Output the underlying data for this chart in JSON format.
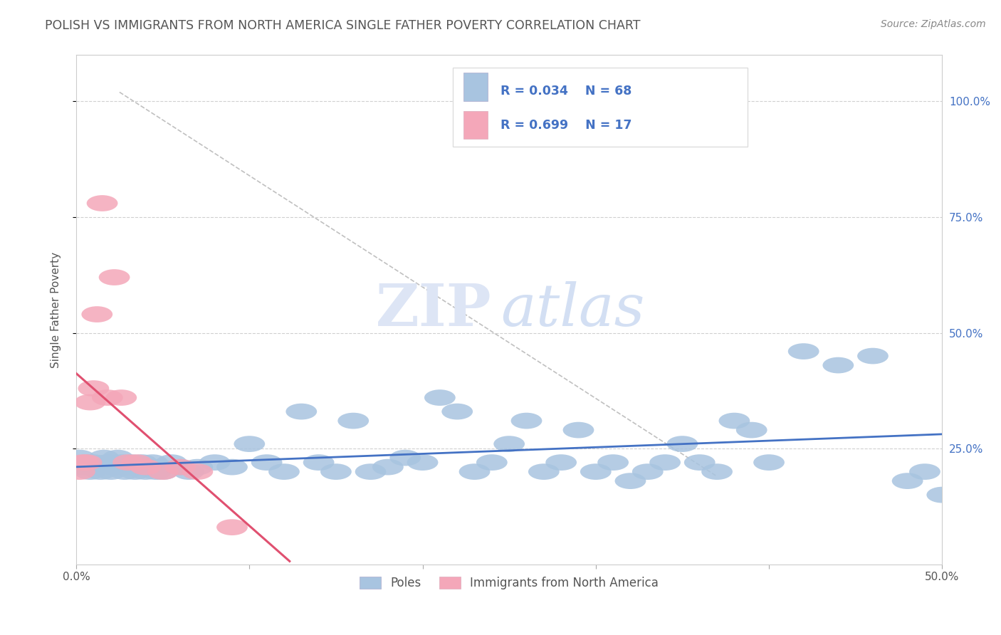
{
  "title": "POLISH VS IMMIGRANTS FROM NORTH AMERICA SINGLE FATHER POVERTY CORRELATION CHART",
  "source": "Source: ZipAtlas.com",
  "ylabel": "Single Father Poverty",
  "xlim": [
    0.0,
    0.5
  ],
  "ylim": [
    0.0,
    1.1
  ],
  "xticks": [
    0.0,
    0.1,
    0.2,
    0.3,
    0.4,
    0.5
  ],
  "xticklabels": [
    "0.0%",
    "",
    "",
    "",
    "",
    "50.0%"
  ],
  "yticks_right": [
    0.25,
    0.5,
    0.75,
    1.0
  ],
  "yticklabels_right": [
    "25.0%",
    "50.0%",
    "75.0%",
    "100.0%"
  ],
  "R_blue": "R = 0.034",
  "N_blue": "N = 68",
  "R_pink": "R = 0.699",
  "N_pink": "N = 17",
  "color_blue": "#a8c4e0",
  "color_pink": "#f4a7b9",
  "line_blue": "#4472c4",
  "line_pink": "#e05070",
  "poles_x": [
    0.002,
    0.004,
    0.006,
    0.008,
    0.01,
    0.012,
    0.014,
    0.016,
    0.018,
    0.02,
    0.022,
    0.024,
    0.026,
    0.028,
    0.03,
    0.032,
    0.034,
    0.036,
    0.038,
    0.04,
    0.042,
    0.044,
    0.046,
    0.048,
    0.05,
    0.055,
    0.06,
    0.065,
    0.07,
    0.08,
    0.09,
    0.1,
    0.11,
    0.12,
    0.13,
    0.14,
    0.15,
    0.16,
    0.17,
    0.18,
    0.19,
    0.2,
    0.21,
    0.22,
    0.23,
    0.24,
    0.25,
    0.26,
    0.27,
    0.28,
    0.29,
    0.3,
    0.31,
    0.32,
    0.33,
    0.34,
    0.35,
    0.36,
    0.37,
    0.38,
    0.39,
    0.4,
    0.42,
    0.44,
    0.46,
    0.48,
    0.49,
    0.5
  ],
  "poles_y": [
    0.23,
    0.21,
    0.22,
    0.2,
    0.22,
    0.21,
    0.2,
    0.23,
    0.22,
    0.2,
    0.21,
    0.23,
    0.22,
    0.2,
    0.21,
    0.22,
    0.2,
    0.21,
    0.22,
    0.2,
    0.21,
    0.22,
    0.2,
    0.21,
    0.2,
    0.22,
    0.21,
    0.2,
    0.21,
    0.22,
    0.21,
    0.26,
    0.22,
    0.2,
    0.33,
    0.22,
    0.2,
    0.31,
    0.2,
    0.21,
    0.23,
    0.22,
    0.36,
    0.33,
    0.2,
    0.22,
    0.26,
    0.31,
    0.2,
    0.22,
    0.29,
    0.2,
    0.22,
    0.18,
    0.2,
    0.22,
    0.26,
    0.22,
    0.2,
    0.31,
    0.29,
    0.22,
    0.46,
    0.43,
    0.45,
    0.18,
    0.2,
    0.15
  ],
  "immigrants_x": [
    0.002,
    0.004,
    0.006,
    0.008,
    0.01,
    0.012,
    0.015,
    0.018,
    0.022,
    0.026,
    0.03,
    0.035,
    0.04,
    0.05,
    0.06,
    0.07,
    0.09
  ],
  "immigrants_y": [
    0.2,
    0.22,
    0.22,
    0.35,
    0.38,
    0.54,
    0.78,
    0.36,
    0.62,
    0.36,
    0.22,
    0.22,
    0.21,
    0.2,
    0.21,
    0.2,
    0.08
  ]
}
